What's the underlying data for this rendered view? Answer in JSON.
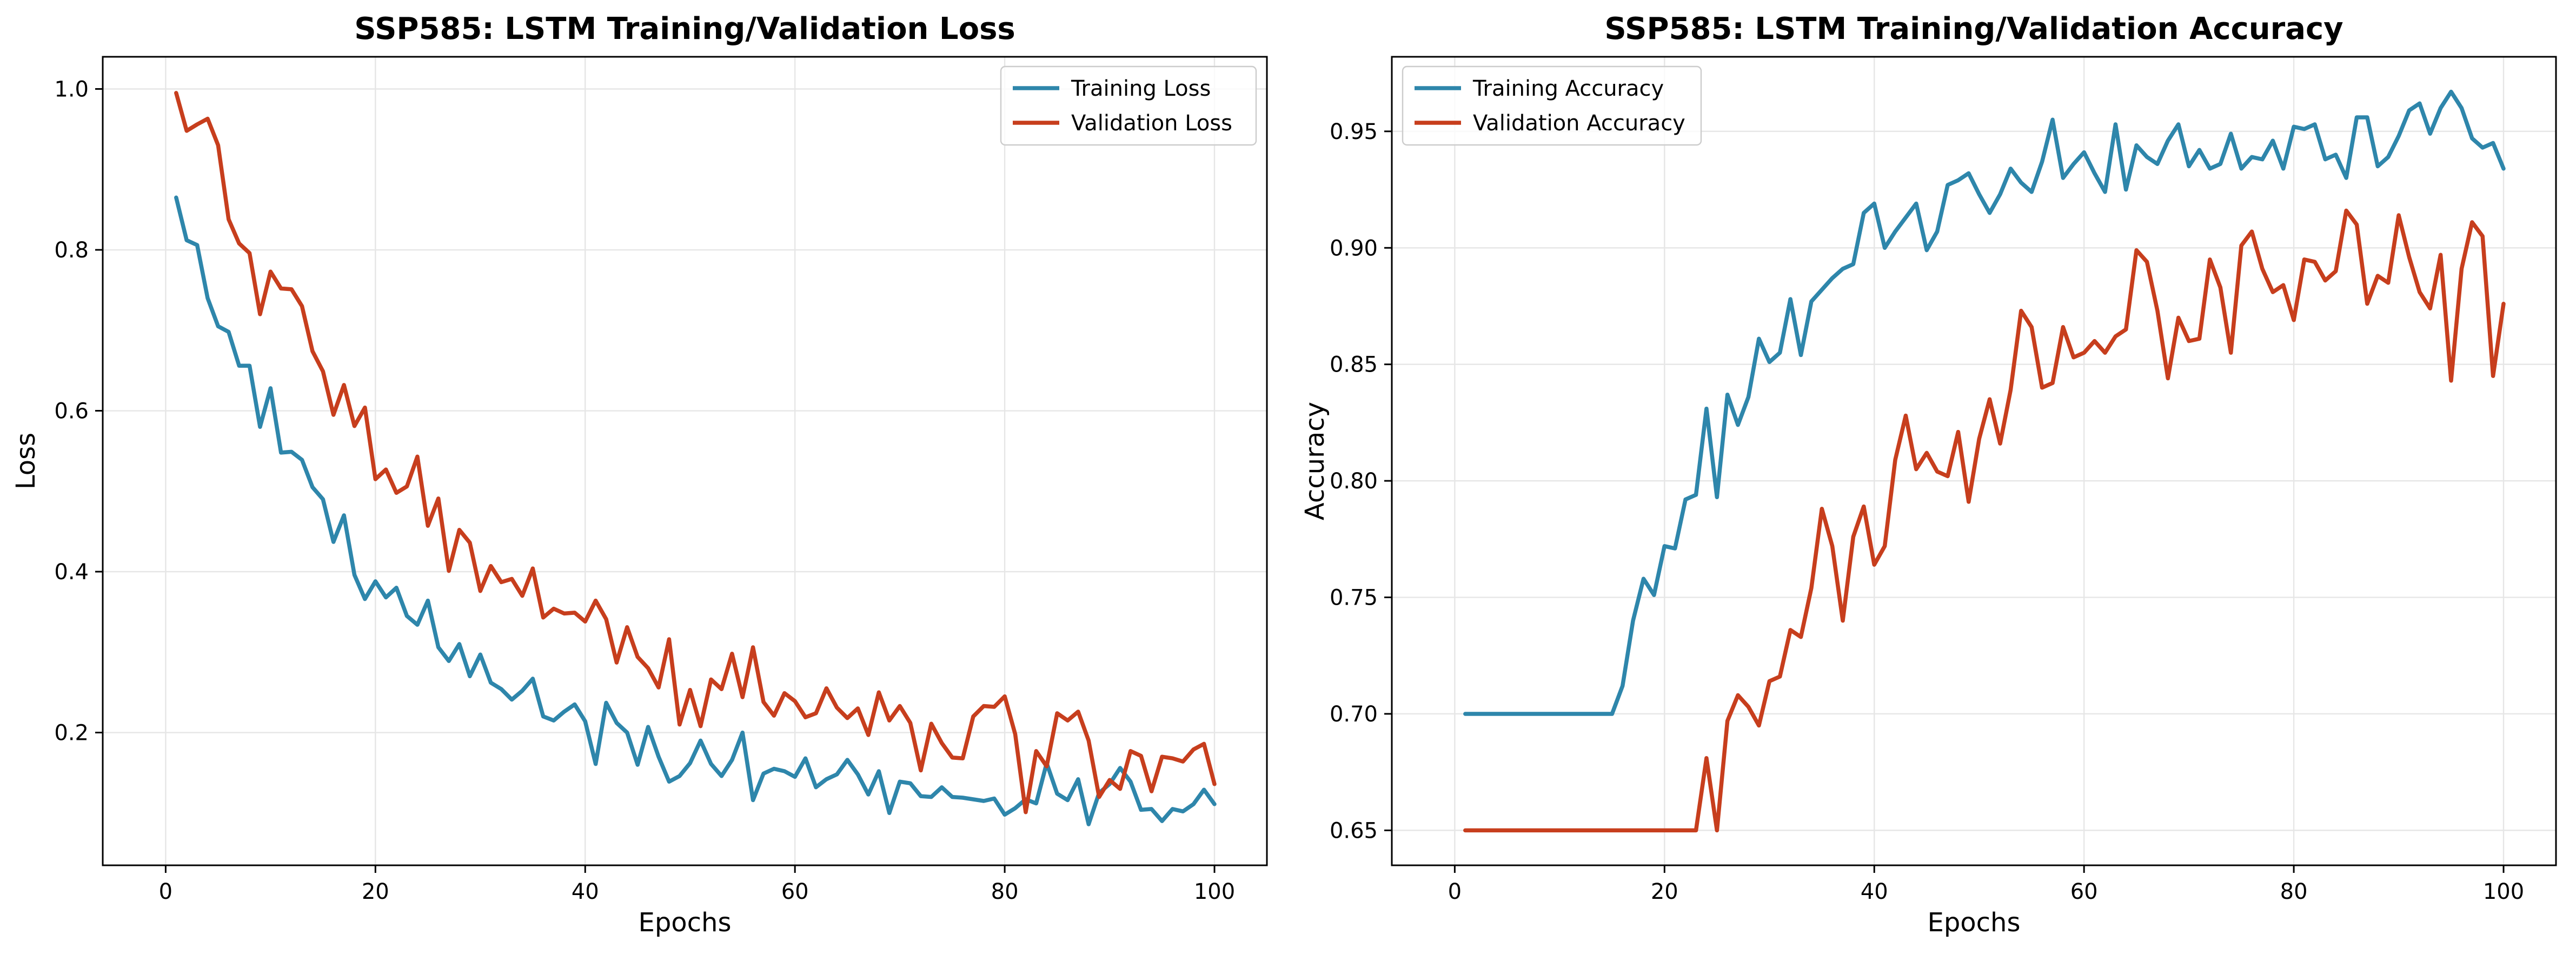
{
  "chart_data": [
    {
      "type": "line",
      "title": "SSP585: LSTM Training/Validation Loss",
      "xlabel": "Epochs",
      "ylabel": "Loss",
      "xlim": [
        -6,
        105
      ],
      "ylim": [
        0.035,
        1.04
      ],
      "xticks": [
        0,
        20,
        40,
        60,
        80,
        100
      ],
      "yticks": [
        0.2,
        0.4,
        0.6,
        0.8,
        1.0
      ],
      "ytick_labels": [
        "0.2",
        "0.4",
        "0.6",
        "0.8",
        "1.0"
      ],
      "grid": true,
      "legend": "top-right",
      "series": [
        {
          "name": "Training Loss",
          "color": "#2e86ab",
          "values": [
            0.865,
            0.812,
            0.806,
            0.74,
            0.705,
            0.698,
            0.656,
            0.656,
            0.58,
            0.628,
            0.548,
            0.549,
            0.539,
            0.505,
            0.49,
            0.437,
            0.47,
            0.396,
            0.366,
            0.388,
            0.368,
            0.38,
            0.345,
            0.334,
            0.364,
            0.306,
            0.289,
            0.31,
            0.27,
            0.297,
            0.262,
            0.254,
            0.241,
            0.252,
            0.267,
            0.22,
            0.215,
            0.226,
            0.235,
            0.214,
            0.161,
            0.237,
            0.212,
            0.2,
            0.16,
            0.207,
            0.17,
            0.139,
            0.146,
            0.162,
            0.19,
            0.161,
            0.146,
            0.166,
            0.2,
            0.116,
            0.149,
            0.155,
            0.152,
            0.145,
            0.168,
            0.132,
            0.142,
            0.148,
            0.166,
            0.148,
            0.123,
            0.152,
            0.1,
            0.139,
            0.137,
            0.121,
            0.12,
            0.132,
            0.12,
            0.119,
            0.117,
            0.115,
            0.118,
            0.098,
            0.106,
            0.117,
            0.112,
            0.162,
            0.124,
            0.116,
            0.142,
            0.086,
            0.125,
            0.136,
            0.156,
            0.139,
            0.104,
            0.105,
            0.09,
            0.105,
            0.102,
            0.111,
            0.129,
            0.111
          ]
        },
        {
          "name": "Validation Loss",
          "color": "#c73e1d",
          "values": [
            0.995,
            0.948,
            0.956,
            0.963,
            0.93,
            0.838,
            0.808,
            0.796,
            0.72,
            0.773,
            0.752,
            0.751,
            0.73,
            0.674,
            0.649,
            0.595,
            0.632,
            0.581,
            0.604,
            0.515,
            0.527,
            0.498,
            0.506,
            0.543,
            0.457,
            0.491,
            0.401,
            0.452,
            0.436,
            0.376,
            0.407,
            0.387,
            0.391,
            0.37,
            0.404,
            0.343,
            0.354,
            0.348,
            0.349,
            0.338,
            0.364,
            0.341,
            0.287,
            0.331,
            0.294,
            0.28,
            0.256,
            0.316,
            0.21,
            0.253,
            0.208,
            0.266,
            0.254,
            0.298,
            0.244,
            0.306,
            0.238,
            0.221,
            0.249,
            0.239,
            0.219,
            0.224,
            0.255,
            0.231,
            0.218,
            0.23,
            0.197,
            0.25,
            0.215,
            0.233,
            0.212,
            0.153,
            0.211,
            0.187,
            0.169,
            0.168,
            0.22,
            0.233,
            0.232,
            0.245,
            0.198,
            0.101,
            0.177,
            0.158,
            0.224,
            0.215,
            0.226,
            0.19,
            0.12,
            0.141,
            0.13,
            0.177,
            0.171,
            0.127,
            0.17,
            0.168,
            0.164,
            0.179,
            0.186,
            0.136
          ]
        }
      ]
    },
    {
      "type": "line",
      "title": "SSP585: LSTM Training/Validation Accuracy",
      "xlabel": "Epochs",
      "ylabel": "Accuracy",
      "xlim": [
        -6,
        105
      ],
      "ylim": [
        0.635,
        0.982
      ],
      "xticks": [
        0,
        20,
        40,
        60,
        80,
        100
      ],
      "yticks": [
        0.65,
        0.7,
        0.75,
        0.8,
        0.85,
        0.9,
        0.95
      ],
      "ytick_labels": [
        "0.65",
        "0.70",
        "0.75",
        "0.80",
        "0.85",
        "0.90",
        "0.95"
      ],
      "grid": true,
      "legend": "top-left",
      "series": [
        {
          "name": "Training Accuracy",
          "color": "#2e86ab",
          "values": [
            0.7,
            0.7,
            0.7,
            0.7,
            0.7,
            0.7,
            0.7,
            0.7,
            0.7,
            0.7,
            0.7,
            0.7,
            0.7,
            0.7,
            0.7,
            0.712,
            0.74,
            0.758,
            0.751,
            0.772,
            0.771,
            0.792,
            0.794,
            0.831,
            0.793,
            0.837,
            0.824,
            0.836,
            0.861,
            0.851,
            0.855,
            0.878,
            0.854,
            0.877,
            0.882,
            0.887,
            0.891,
            0.893,
            0.915,
            0.919,
            0.9,
            0.907,
            0.913,
            0.919,
            0.899,
            0.907,
            0.927,
            0.929,
            0.932,
            0.923,
            0.915,
            0.923,
            0.934,
            0.928,
            0.924,
            0.937,
            0.955,
            0.93,
            0.936,
            0.941,
            0.932,
            0.924,
            0.953,
            0.925,
            0.944,
            0.939,
            0.936,
            0.946,
            0.953,
            0.935,
            0.942,
            0.934,
            0.936,
            0.949,
            0.934,
            0.939,
            0.938,
            0.946,
            0.934,
            0.952,
            0.951,
            0.953,
            0.938,
            0.94,
            0.93,
            0.956,
            0.956,
            0.935,
            0.939,
            0.948,
            0.959,
            0.962,
            0.949,
            0.96,
            0.967,
            0.96,
            0.947,
            0.943,
            0.945,
            0.934
          ]
        },
        {
          "name": "Validation Accuracy",
          "color": "#c73e1d",
          "values": [
            0.65,
            0.65,
            0.65,
            0.65,
            0.65,
            0.65,
            0.65,
            0.65,
            0.65,
            0.65,
            0.65,
            0.65,
            0.65,
            0.65,
            0.65,
            0.65,
            0.65,
            0.65,
            0.65,
            0.65,
            0.65,
            0.65,
            0.65,
            0.681,
            0.65,
            0.697,
            0.708,
            0.703,
            0.695,
            0.714,
            0.716,
            0.736,
            0.733,
            0.754,
            0.788,
            0.772,
            0.74,
            0.776,
            0.789,
            0.764,
            0.772,
            0.809,
            0.828,
            0.805,
            0.812,
            0.804,
            0.802,
            0.821,
            0.791,
            0.818,
            0.835,
            0.816,
            0.839,
            0.873,
            0.866,
            0.84,
            0.842,
            0.866,
            0.853,
            0.855,
            0.86,
            0.855,
            0.862,
            0.865,
            0.899,
            0.894,
            0.873,
            0.844,
            0.87,
            0.86,
            0.861,
            0.895,
            0.883,
            0.855,
            0.901,
            0.907,
            0.891,
            0.881,
            0.884,
            0.869,
            0.895,
            0.894,
            0.886,
            0.89,
            0.916,
            0.91,
            0.876,
            0.888,
            0.885,
            0.914,
            0.896,
            0.881,
            0.874,
            0.897,
            0.843,
            0.891,
            0.911,
            0.905,
            0.845,
            0.876
          ]
        }
      ]
    }
  ]
}
